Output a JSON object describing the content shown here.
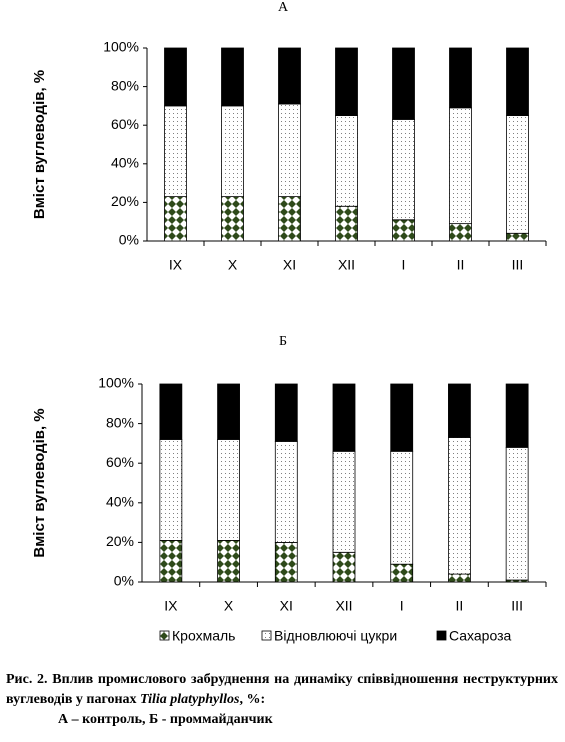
{
  "chart_data": [
    {
      "type": "stacked_bar",
      "title": "А",
      "y_label": "Вміст вуглеводів, %",
      "categories": [
        "IX",
        "X",
        "XI",
        "XII",
        "I",
        "II",
        "III"
      ],
      "series": [
        {
          "color": "#2e4a1a",
          "pattern": "checker",
          "values": [
            23,
            23,
            23,
            18,
            11,
            9,
            4
          ]
        },
        {
          "color": "#808080",
          "pattern": "dots",
          "values": [
            47,
            47,
            48,
            47,
            52,
            60,
            61
          ]
        },
        {
          "color": "#000000",
          "pattern": "solid",
          "values": [
            30,
            30,
            29,
            35,
            37,
            31,
            35
          ]
        }
      ],
      "ylim": [
        0,
        100
      ],
      "yticks": [
        {
          "value": 0,
          "label": "0%"
        },
        {
          "value": 20,
          "label": "20%"
        },
        {
          "value": 40,
          "label": "40%"
        },
        {
          "value": 60,
          "label": "60%"
        },
        {
          "value": 80,
          "label": "80%"
        },
        {
          "value": 100,
          "label": "100%"
        }
      ]
    },
    {
      "type": "stacked_bar",
      "title": "Б",
      "y_label": "Вміст вуглеводів, %",
      "categories": [
        "IX",
        "X",
        "XI",
        "XII",
        "I",
        "II",
        "III"
      ],
      "series": [
        {
          "name": "Крохмаль",
          "color": "#2e4a1a",
          "pattern": "checker",
          "values": [
            21,
            21,
            20,
            15,
            9,
            4,
            1
          ]
        },
        {
          "name": "Відновлюючі цукри",
          "color": "#808080",
          "pattern": "dots",
          "values": [
            51,
            51,
            51,
            51,
            57,
            69,
            67
          ]
        },
        {
          "name": "Сахароза",
          "color": "#000000",
          "pattern": "solid",
          "values": [
            28,
            28,
            29,
            34,
            34,
            27,
            32
          ]
        }
      ],
      "ylim": [
        0,
        100
      ],
      "yticks": [
        {
          "value": 0,
          "label": "0%"
        },
        {
          "value": 20,
          "label": "20%"
        },
        {
          "value": 40,
          "label": "40%"
        },
        {
          "value": 60,
          "label": "60%"
        },
        {
          "value": 80,
          "label": "80%"
        },
        {
          "value": 100,
          "label": "100%"
        }
      ],
      "legend": "bottom"
    }
  ],
  "caption": {
    "label": "Рис. 2.",
    "text_before": "Вплив промислового забруднення на динаміку співвідношення неструктурних вуглеводів у пагонах",
    "species": "Tilia platyphyllos",
    "text_after": ", %:",
    "line2": "А – контроль, Б - проммайданчик"
  }
}
